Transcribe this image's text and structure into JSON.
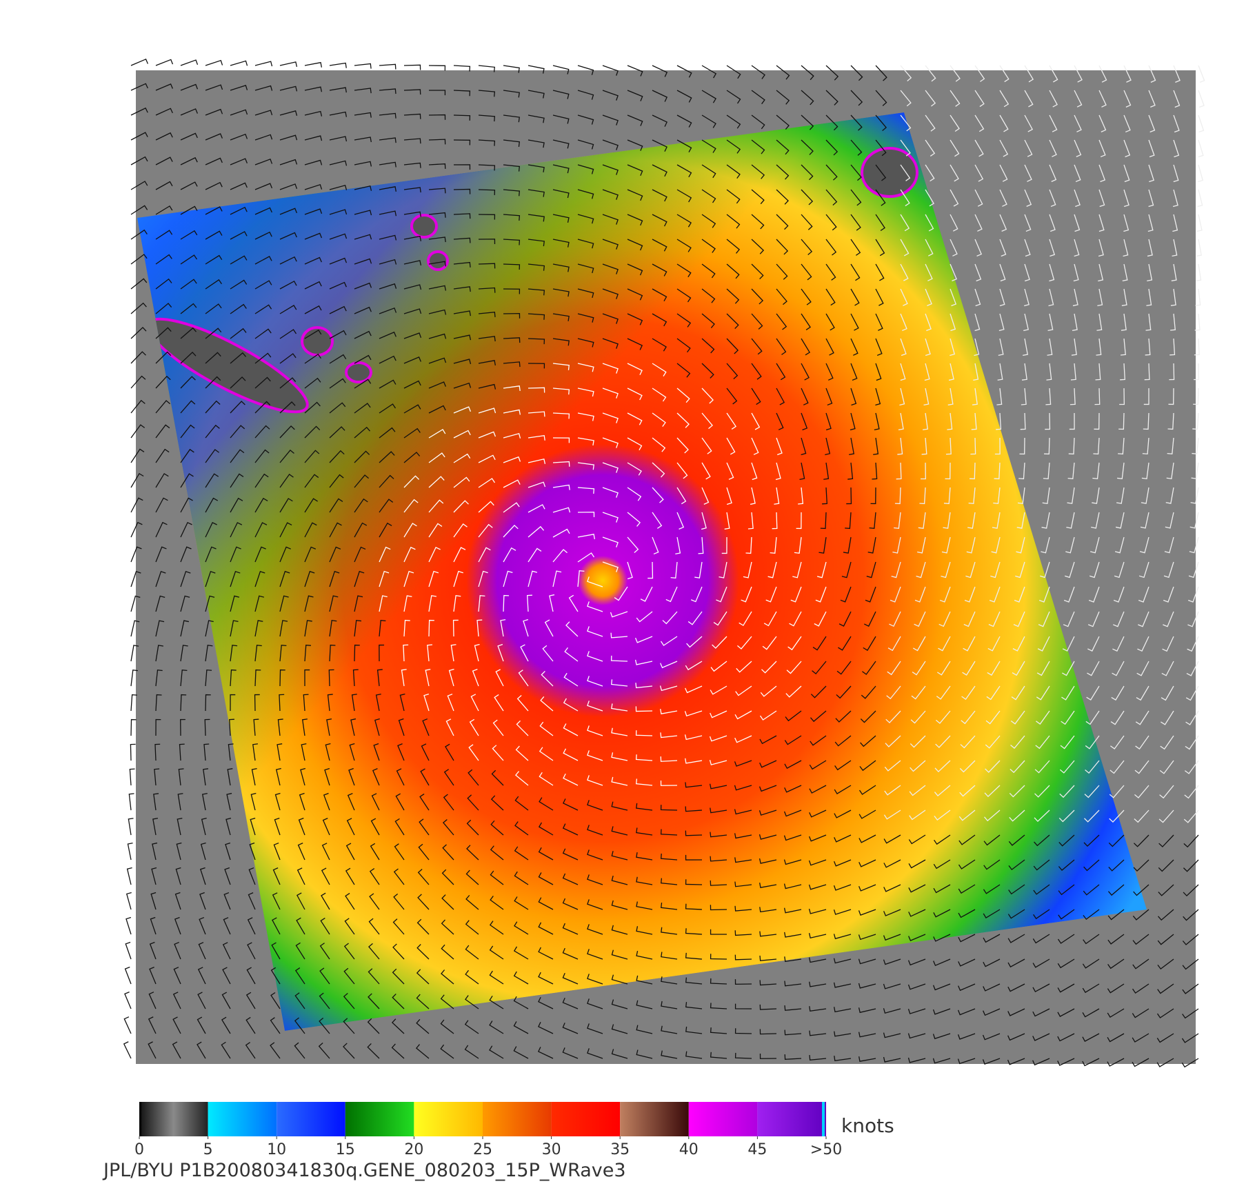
{
  "colorbar": {
    "ticks": [
      0,
      5,
      10,
      15,
      20,
      25,
      30,
      35,
      40,
      45,
      {
        "value": 50,
        "label": ">50"
      }
    ],
    "colors": [
      [
        "#111111",
        "#8a8a8a",
        "#222222"
      ],
      [
        "#00eaff",
        "#0070ff"
      ],
      [
        "#2a6cff",
        "#0010ff"
      ],
      [
        "#007000",
        "#22dd22"
      ],
      [
        "#ffff20",
        "#ffb800"
      ],
      [
        "#ff9a00",
        "#e83a00"
      ],
      [
        "#ff2a00",
        "#ff0000"
      ],
      [
        "#c08060",
        "#3a0a0a"
      ],
      [
        "#ff00ff",
        "#b000e0"
      ],
      [
        "#a020f0",
        "#6000c0"
      ]
    ],
    "unit": "knots"
  },
  "caption": "JPL/BYU  P1B20080341830q.GENE_080203_15P_WRave3"
}
